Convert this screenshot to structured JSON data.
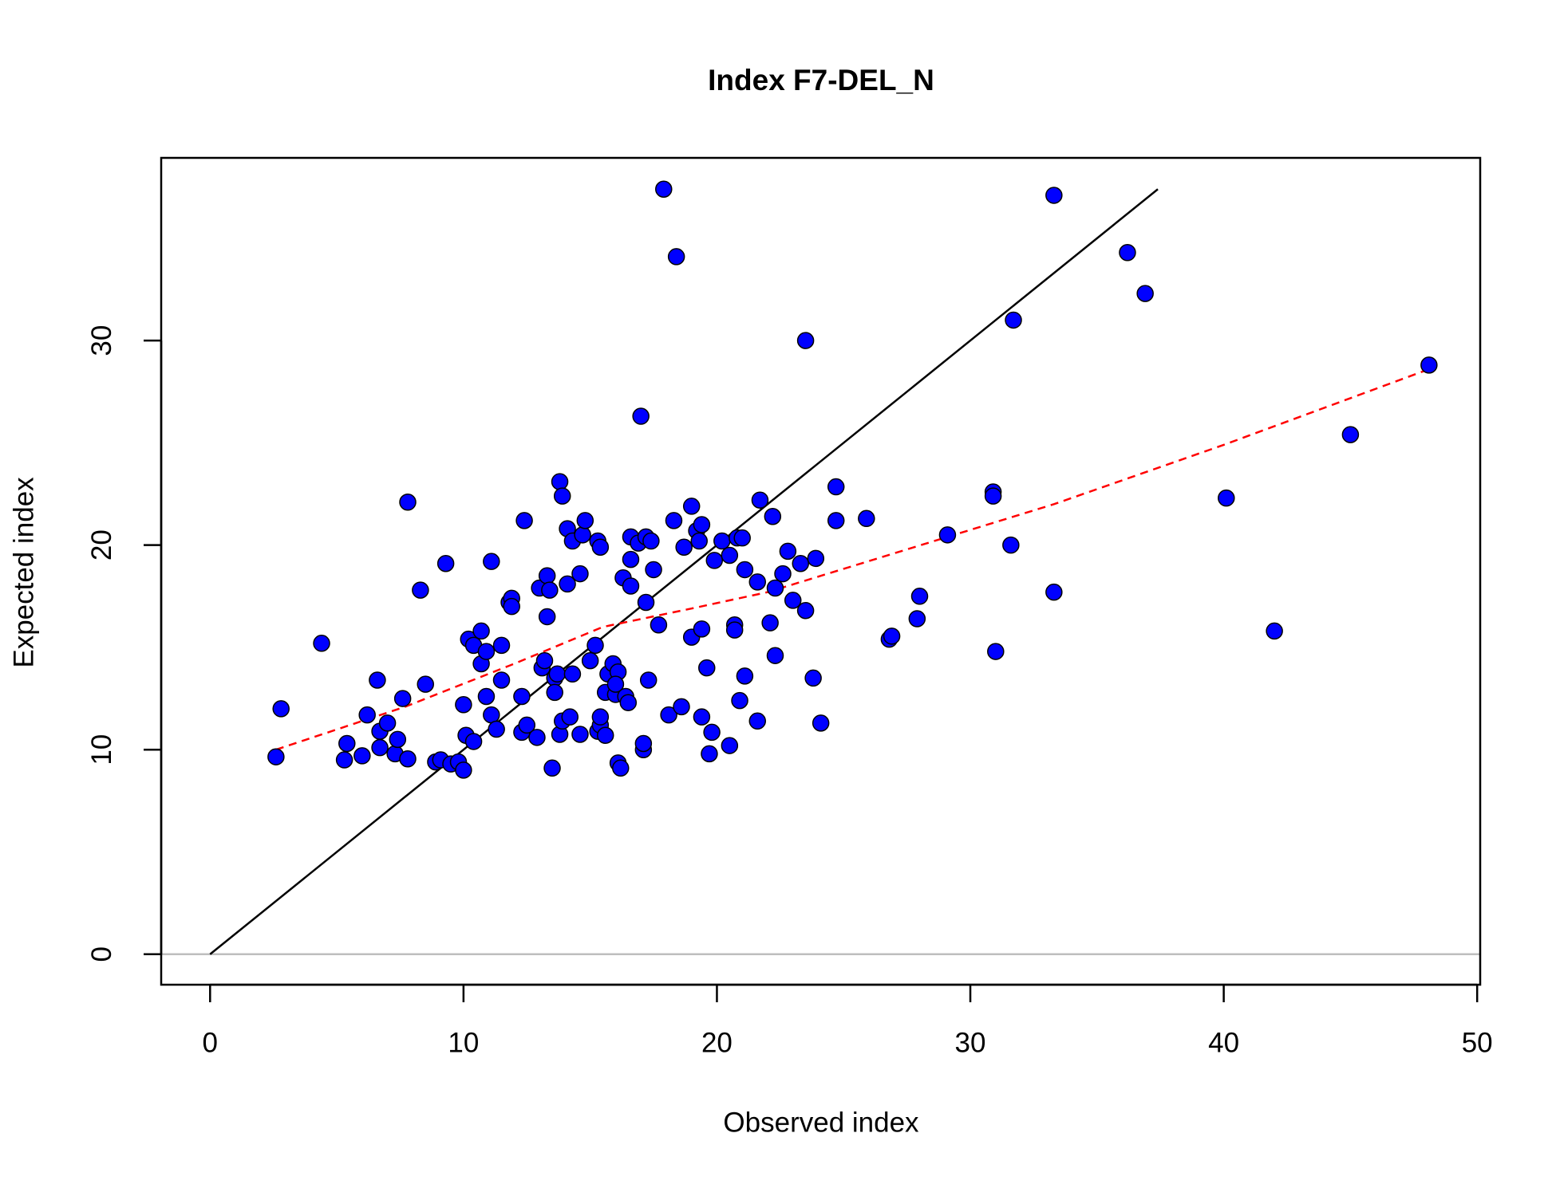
{
  "chart_data": {
    "type": "scatter",
    "title": "Index F7-DEL_N",
    "x_label": "Observed index",
    "y_label": "Expected index",
    "xlim": [
      -1.93,
      50.12
    ],
    "ylim": [
      -1.49,
      38.93
    ],
    "xticks": [
      0,
      10,
      20,
      30,
      40,
      50
    ],
    "yticks": [
      0,
      10,
      20,
      30
    ],
    "hline": {
      "value": 0,
      "color": "#bebebe"
    },
    "series": [
      {
        "color": "#0000ff",
        "x": [
          2.6,
          2.8,
          4.4,
          5.4,
          5.3,
          6.0,
          6.2,
          6.6,
          6.7,
          7.0,
          6.7,
          7.3,
          7.4,
          7.6,
          7.8,
          7.8,
          8.3,
          8.5,
          8.9,
          9.1,
          9.3,
          9.5,
          9.8,
          10.0,
          10.1,
          10.0,
          10.2,
          10.4,
          10.4,
          10.7,
          10.7,
          10.9,
          10.9,
          11.1,
          11.1,
          11.3,
          11.5,
          11.5,
          11.8,
          11.9,
          11.9,
          12.3,
          12.4,
          12.3,
          12.5,
          12.9,
          13.0,
          13.1,
          13.2,
          13.3,
          13.3,
          13.4,
          13.5,
          13.6,
          13.6,
          13.7,
          13.8,
          13.8,
          13.9,
          13.9,
          14.1,
          14.1,
          14.2,
          14.3,
          14.3,
          14.6,
          14.7,
          14.8,
          14.6,
          15.0,
          15.2,
          15.3,
          15.4,
          15.3,
          15.4,
          15.4,
          15.6,
          15.6,
          15.7,
          15.9,
          16.0,
          16.1,
          16.0,
          16.1,
          16.2,
          16.3,
          16.4,
          16.5,
          16.6,
          16.6,
          16.6,
          16.9,
          17.0,
          17.1,
          17.1,
          17.2,
          17.2,
          17.4,
          17.3,
          17.5,
          17.7,
          17.9,
          18.1,
          18.4,
          18.3,
          18.6,
          18.7,
          19.0,
          19.0,
          19.2,
          19.3,
          19.4,
          19.4,
          19.4,
          19.6,
          19.7,
          19.8,
          19.9,
          20.2,
          20.5,
          20.5,
          20.7,
          20.7,
          20.8,
          20.9,
          21.0,
          21.1,
          21.1,
          21.6,
          21.6,
          21.7,
          22.1,
          22.2,
          22.3,
          22.3,
          22.6,
          22.8,
          23.0,
          23.3,
          23.5,
          23.5,
          23.8,
          23.9,
          24.1,
          24.7,
          24.7,
          25.9,
          26.8,
          26.9,
          27.9,
          28.0,
          29.1,
          30.9,
          30.9,
          31.0,
          31.6,
          31.7,
          33.3,
          33.3,
          36.2,
          36.9,
          40.1,
          42.0,
          45.0,
          48.1
        ],
        "values": [
          9.65,
          12.0,
          15.2,
          10.3,
          9.5,
          9.7,
          11.7,
          13.4,
          10.9,
          11.3,
          10.1,
          9.8,
          10.5,
          12.5,
          9.55,
          22.1,
          17.8,
          13.2,
          9.4,
          9.5,
          19.1,
          9.3,
          9.4,
          12.2,
          10.7,
          9.0,
          15.4,
          10.4,
          15.1,
          15.8,
          14.2,
          12.6,
          14.8,
          19.2,
          11.7,
          11.0,
          15.1,
          13.4,
          17.2,
          17.4,
          17.0,
          12.6,
          21.2,
          10.85,
          11.2,
          10.6,
          17.9,
          14.0,
          14.35,
          18.5,
          16.5,
          17.8,
          9.1,
          13.5,
          12.8,
          13.7,
          10.75,
          23.1,
          22.4,
          11.4,
          20.8,
          18.1,
          11.6,
          13.7,
          20.2,
          18.6,
          20.5,
          21.2,
          10.75,
          14.35,
          15.1,
          20.2,
          19.9,
          10.9,
          11.2,
          11.6,
          10.7,
          12.8,
          13.7,
          14.2,
          12.7,
          13.8,
          13.2,
          9.35,
          9.1,
          18.4,
          12.6,
          12.3,
          18.0,
          20.4,
          19.3,
          20.1,
          26.3,
          10.0,
          10.3,
          20.4,
          17.2,
          20.2,
          13.4,
          18.8,
          16.1,
          37.4,
          11.7,
          34.1,
          21.2,
          12.1,
          19.9,
          21.9,
          15.5,
          20.7,
          20.2,
          21.0,
          15.9,
          11.6,
          14.0,
          9.8,
          10.85,
          19.25,
          20.2,
          19.5,
          10.2,
          16.1,
          15.85,
          20.35,
          12.4,
          20.35,
          13.6,
          18.8,
          11.4,
          18.2,
          22.2,
          16.2,
          21.4,
          17.9,
          14.6,
          18.6,
          19.7,
          17.3,
          19.1,
          16.8,
          30.0,
          13.5,
          19.35,
          11.3,
          21.2,
          22.85,
          21.3,
          15.4,
          15.55,
          16.4,
          17.5,
          20.5,
          22.6,
          22.4,
          14.8,
          20.0,
          31.0,
          37.1,
          17.7,
          34.3,
          32.3,
          22.3,
          15.8,
          25.4,
          28.8
        ]
      }
    ],
    "lines": [
      {
        "color": "#000000",
        "dashed": false,
        "x": [
          0,
          37.4
        ],
        "values": [
          0,
          37.4
        ]
      },
      {
        "color": "#ff0000",
        "dashed": true,
        "x": [
          2.6,
          7.7,
          12.0,
          15.5,
          19.0,
          22.0,
          27.0,
          33.3,
          40.0,
          48.1
        ],
        "values": [
          10.0,
          12.1,
          14.2,
          16.0,
          16.9,
          17.7,
          19.6,
          22.0,
          24.9,
          28.6
        ]
      }
    ]
  }
}
